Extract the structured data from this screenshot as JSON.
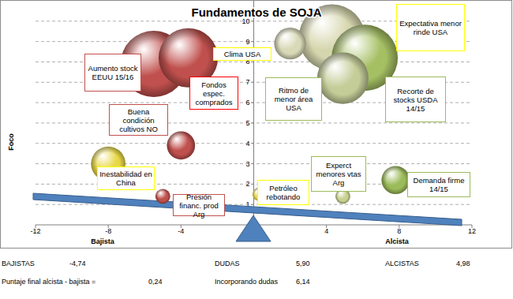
{
  "chart_data": {
    "type": "bubble",
    "title": "Fundamentos de SOJA",
    "ylabel": "Foco",
    "xlabel_left": "Bajista",
    "xlabel_right": "Alcista",
    "labels": [
      "Aumento stock EEUU 15/16",
      "Fondos espec. comprados",
      "Buena condición cultivos NO",
      "Inestabilidad en China",
      "Presión financ. prod Arg",
      "Petróleo rebotando",
      "Clima USA",
      "Expectativa menor rinde USA",
      "Ritmo de menor área USA",
      "Recorte de stocks USDA 14/15",
      "Experct menores vtas Arg",
      "Demanda firme 14/15"
    ],
    "x": [
      -5.5,
      -3.6,
      -4,
      -8,
      -5,
      0.3,
      2,
      4.3,
      4.9,
      6.1,
      4.9,
      7.8
    ],
    "values": [
      7.9,
      8.2,
      3.9,
      3,
      1.4,
      1.5,
      8.9,
      9.2,
      7.2,
      8.2,
      1.4,
      2.2
    ],
    "sizes": [
      10,
      8,
      1.8,
      2.7,
      0.5,
      0.4,
      2.3,
      10,
      6,
      10,
      0.5,
      1.8
    ],
    "colors": [
      "#c0504d",
      "#c0504d",
      "#c0504d",
      "#e8d848",
      "#c0504d",
      "#e8d848",
      "#d9d9b8",
      "#d6d6ae",
      "#c4cc98",
      "#a5bf63",
      "#c8d090",
      "#9bbb59"
    ],
    "xlim": [
      -12,
      12
    ],
    "xticks": [
      -12,
      -8,
      -4,
      4,
      8,
      12
    ],
    "ylim": [
      0,
      11
    ],
    "yticks": [
      1,
      2,
      3,
      4,
      5,
      6,
      7,
      8,
      9,
      10
    ],
    "grid": true
  },
  "footer": {
    "rows": [
      [
        "BAJISTAS",
        "-4,74",
        "DUDAS",
        "5,90",
        "ALCISTAS",
        "4,98"
      ],
      [
        "Puntaje final alcista - bajista =",
        "0,24",
        "Incorporando dudas",
        "6,14"
      ]
    ]
  }
}
